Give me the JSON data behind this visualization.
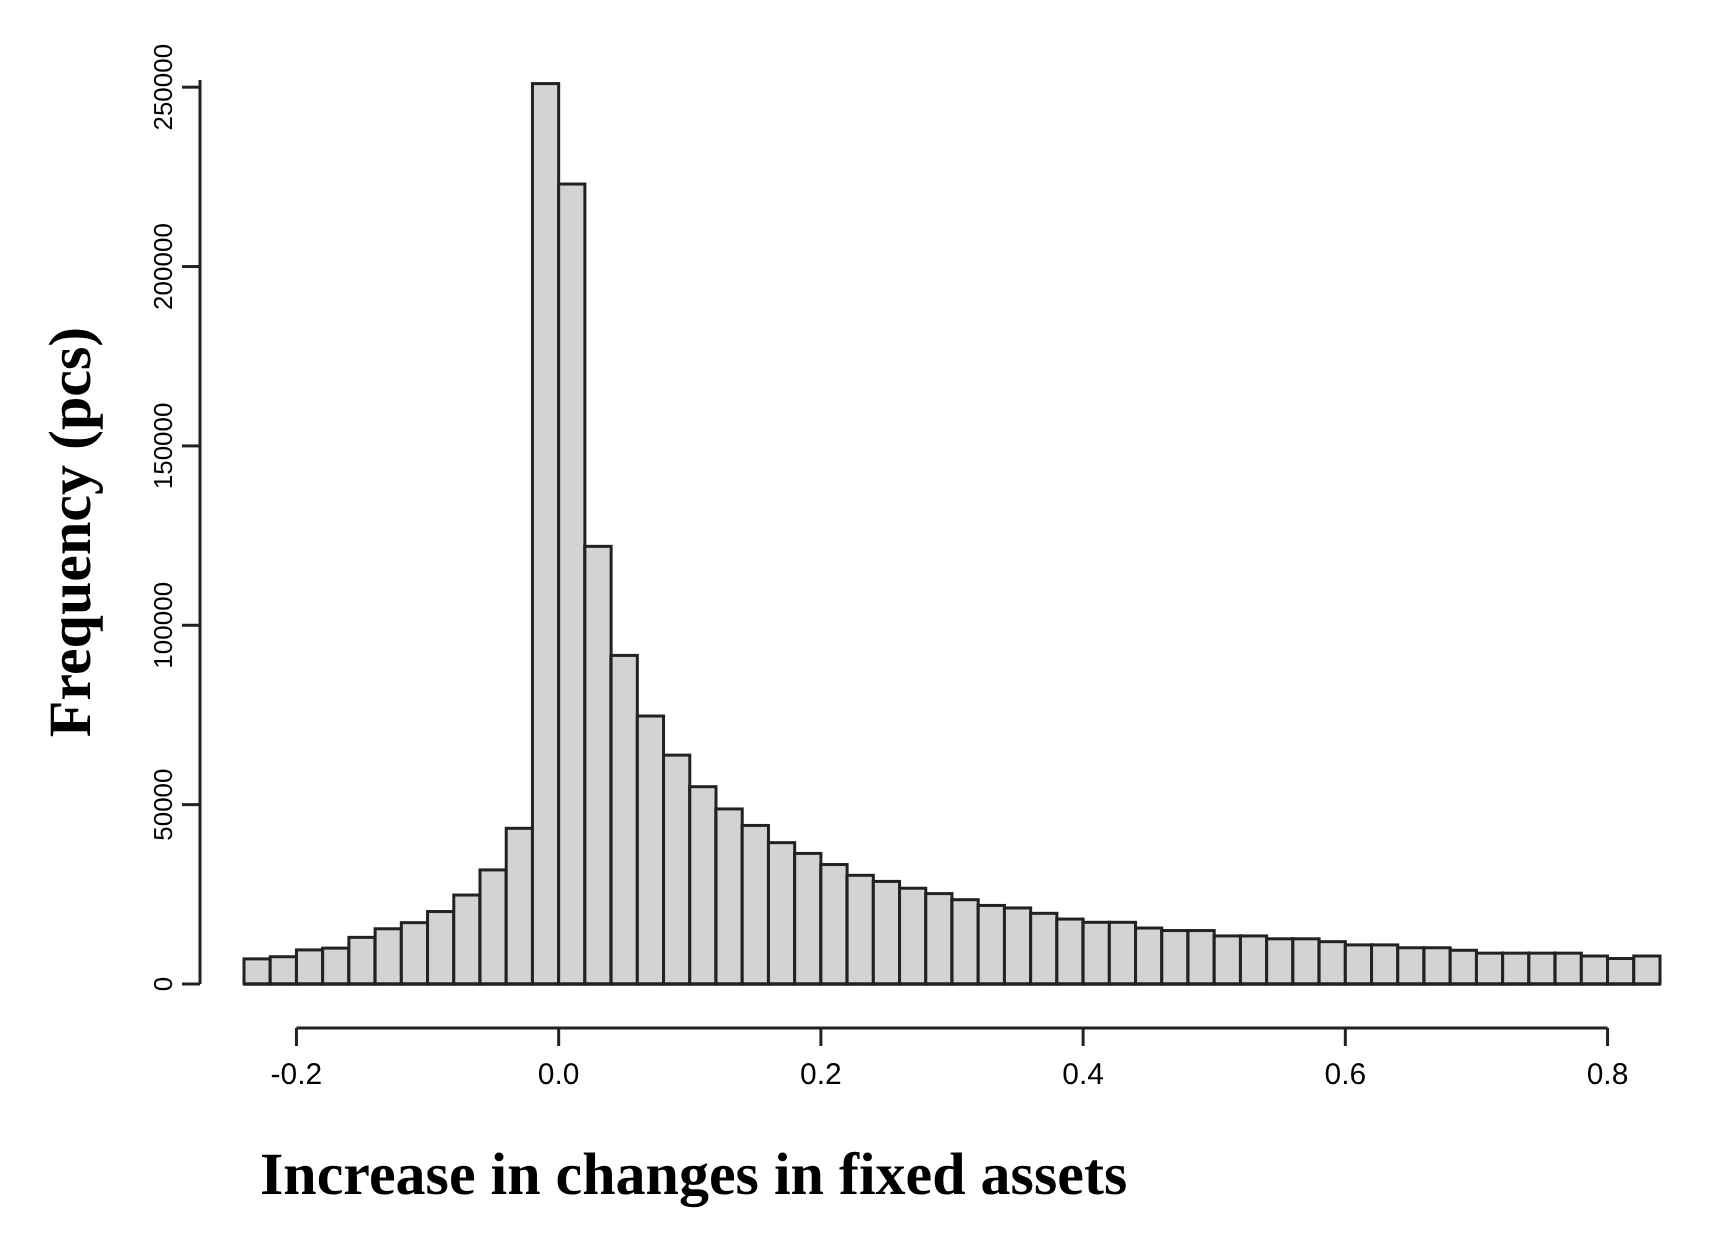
{
  "chart_data": {
    "type": "histogram",
    "xlabel": "Increase in changes in fixed assets",
    "ylabel": "Frequency (pcs)",
    "color": "#d3d3d3",
    "bins": [
      -0.24,
      -0.22,
      -0.2,
      -0.18,
      -0.16,
      -0.14,
      -0.12,
      -0.1,
      -0.08,
      -0.06,
      -0.04,
      -0.02,
      0,
      0.02,
      0.04,
      0.06,
      0.08,
      0.1,
      0.12,
      0.14,
      0.16,
      0.18,
      0.2,
      0.22,
      0.24,
      0.26,
      0.28,
      0.3,
      0.32,
      0.34,
      0.36,
      0.38,
      0.4,
      0.42,
      0.44,
      0.46,
      0.48,
      0.5,
      0.52,
      0.54,
      0.56,
      0.58,
      0.6,
      0.62,
      0.64,
      0.66,
      0.68,
      0.7,
      0.72,
      0.74,
      0.76,
      0.78,
      0.8,
      0.82,
      0.84
    ],
    "values": [
      7000,
      7600,
      9500,
      10000,
      13000,
      15400,
      17100,
      20200,
      24800,
      31800,
      43400,
      251000,
      223000,
      122000,
      91600,
      74700,
      63800,
      55000,
      48800,
      44200,
      39400,
      36400,
      33300,
      30300,
      28600,
      26700,
      25200,
      23500,
      21900,
      21200,
      19700,
      18100,
      17200,
      17200,
      15600,
      14900,
      14900,
      13400,
      13400,
      12600,
      12600,
      11800,
      10900,
      10900,
      10100,
      10100,
      9400,
      8600,
      8600,
      8600,
      8600,
      7800,
      7100,
      7800
    ],
    "xlim": [
      -0.24,
      0.84
    ],
    "xticks": [
      {
        "value": -0.2,
        "label": "-0.2"
      },
      {
        "value": 0,
        "label": "0.0"
      },
      {
        "value": 0.2,
        "label": "0.2"
      },
      {
        "value": 0.4,
        "label": "0.4"
      },
      {
        "value": 0.6,
        "label": "0.6"
      },
      {
        "value": 0.8,
        "label": "0.8"
      }
    ],
    "ylim": [
      0,
      252000
    ],
    "yticks": [
      0,
      50000,
      100000,
      150000,
      200000,
      250000
    ],
    "grid": false
  }
}
